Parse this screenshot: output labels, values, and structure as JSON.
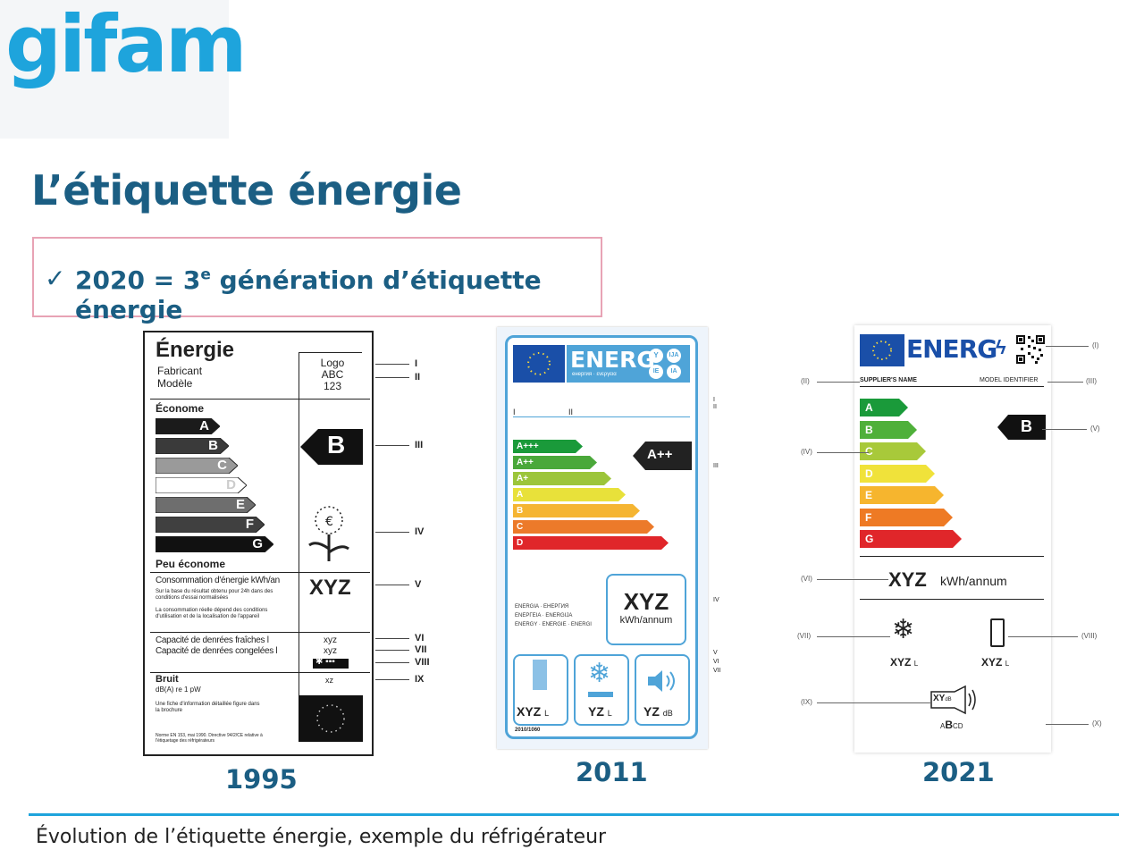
{
  "logo": {
    "text": "gifam",
    "color": "#1ea4dc"
  },
  "title": "L’étiquette énergie",
  "callout": {
    "check": "✓",
    "pre": "2020 = 3",
    "sup": "e",
    "post": " génération d’étiquette énergie"
  },
  "years": [
    "1995",
    "2011",
    "2021"
  ],
  "caption": "Évolution de l’étiquette énergie, exemple du réfrigérateur",
  "colors": {
    "accent": "#1ea4dc",
    "title": "#1b5e83",
    "callout_border": "#e8a3b5"
  },
  "label1995": {
    "title": "Énergie",
    "fabricant": "Fabricant",
    "modele": "Modèle",
    "logo_lines": [
      "Logo",
      "ABC",
      "123"
    ],
    "econome": "Économe",
    "peu_econome": "Peu économe",
    "classes": [
      "A",
      "B",
      "C",
      "D",
      "E",
      "F",
      "G"
    ],
    "class_shades": [
      "#1b1b1b",
      "#3a3a3a",
      "#9a9a9a",
      "#ffffff",
      "#6e6e6e",
      "#404040",
      "#111111"
    ],
    "rating": "B",
    "conso_title": "Consommation d'énergie kWh/an",
    "conso_note1": "Sur la base du résultat obtenu pour 24h dans des conditions d'essai normalisées",
    "conso_note2": "La consommation réelle dépend des conditions d'utilisation et de la localisation de l'appareil",
    "conso_value": "XYZ",
    "cap_fresh": "Capacité de denrées fraîches l",
    "cap_frozen": "Capacité de denrées congelées l",
    "cap_fresh_value": "xyz",
    "cap_frozen_value": "xyz",
    "bruit": "Bruit",
    "bruit_unit": "dB(A) re 1 pW",
    "bruit_value": "xz",
    "fiche": "Une fiche d'information détaillée figure dans la brochure",
    "norme": "Norme EN 153, mai 1990. Directive 94/2/CE relative à l'étiquetage des réfrigérateurs",
    "markers": [
      "I",
      "II",
      "III",
      "IV",
      "V",
      "VI",
      "VII",
      "VIII",
      "IX"
    ]
  },
  "label2011": {
    "header": "ENERG",
    "header_sub": "енергия · ενεργεια",
    "badges": [
      "Y",
      "IJA",
      "IE",
      "IA"
    ],
    "row_markers": [
      "I",
      "II"
    ],
    "classes": [
      "A+++",
      "A++",
      "A+",
      "A",
      "B",
      "C",
      "D"
    ],
    "class_colors": [
      "#1a9a3a",
      "#4aa83a",
      "#9cc53a",
      "#e8e13a",
      "#f5b532",
      "#ec7a2a",
      "#e0262a"
    ],
    "rating": "A++",
    "languages": "ENERGIA · ЕНЕРГИЯ\nΕΝΕΡΓΕΙΑ · ENERGIJA\nENERGY · ENERGIE · ENERGI",
    "consumption_value": "XYZ",
    "consumption_unit": "kWh/annum",
    "fresh_value": "XYZ",
    "fresh_unit": "L",
    "frozen_value": "YZ",
    "frozen_unit": "L",
    "noise_value": "YZ",
    "noise_unit": "dB",
    "regulation": "2010/1060",
    "markers": [
      "I",
      "II",
      "III",
      "IV",
      "V",
      "VI",
      "VII"
    ]
  },
  "label2021": {
    "header": "ENERG",
    "supplier": "SUPPLIER'S NAME",
    "model": "MODEL IDENTIFIER",
    "classes": [
      "A",
      "B",
      "C",
      "D",
      "E",
      "F",
      "G"
    ],
    "class_colors": [
      "#1a9a3a",
      "#4fb03a",
      "#a8c93a",
      "#f0e23a",
      "#f6b52e",
      "#ee7a24",
      "#e0262a"
    ],
    "rating": "B",
    "consumption_value": "XYZ",
    "consumption_unit": "kWh/annum",
    "freezer_value": "XYZ",
    "freezer_unit": "L",
    "fridge_value": "XYZ",
    "fridge_unit": "L",
    "noise_value": "XY",
    "noise_unit": "dB",
    "noise_classes_a": "A",
    "noise_classes_b": "B",
    "noise_classes_cd": "CD",
    "markers": [
      "(I)",
      "(II)",
      "(III)",
      "(IV)",
      "(V)",
      "(VI)",
      "(VII)",
      "(VIII)",
      "(IX)",
      "(X)"
    ]
  }
}
